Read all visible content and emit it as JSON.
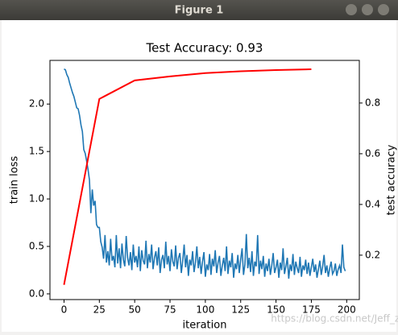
{
  "window": {
    "title": "Figure 1"
  },
  "watermark": "https://blog.csdn.net/Jeff_zjf",
  "chart_data": {
    "type": "line",
    "title": "Test Accuracy: 0.93",
    "xlabel": "iteration",
    "ylabel": "train loss",
    "y2label": "test accuracy",
    "xlim": [
      -9.95,
      208.95
    ],
    "xticks": [
      0,
      25,
      50,
      75,
      100,
      125,
      150,
      175,
      200
    ],
    "ylim": [
      -0.06,
      2.46
    ],
    "yticks": [
      {
        "value": 0,
        "label": "0.0"
      },
      {
        "value": 0.5,
        "label": "0.5"
      },
      {
        "value": 1,
        "label": "1.0"
      },
      {
        "value": 1.5,
        "label": "1.5"
      },
      {
        "value": 2,
        "label": "2.0"
      }
    ],
    "y2lim": [
      0.025,
      0.968
    ],
    "y2ticks": [
      0.2,
      0.4,
      0.6,
      0.8
    ],
    "series": [
      {
        "color": "#1f77b4",
        "x": [
          0,
          1,
          2,
          3,
          4,
          5,
          6,
          7,
          8,
          9,
          10,
          11,
          12,
          13,
          14,
          15,
          16,
          17,
          18,
          19,
          20,
          21,
          22,
          23,
          24,
          25,
          26,
          27,
          28,
          29,
          30,
          31,
          32,
          33,
          34,
          35,
          36,
          37,
          38,
          39,
          40,
          41,
          42,
          43,
          44,
          45,
          46,
          47,
          48,
          49,
          50,
          51,
          52,
          53,
          54,
          55,
          56,
          57,
          58,
          59,
          60,
          61,
          62,
          63,
          64,
          65,
          66,
          67,
          68,
          69,
          70,
          71,
          72,
          73,
          74,
          75,
          76,
          77,
          78,
          79,
          80,
          81,
          82,
          83,
          84,
          85,
          86,
          87,
          88,
          89,
          90,
          91,
          92,
          93,
          94,
          95,
          96,
          97,
          98,
          99,
          100,
          101,
          102,
          103,
          104,
          105,
          106,
          107,
          108,
          109,
          110,
          111,
          112,
          113,
          114,
          115,
          116,
          117,
          118,
          119,
          120,
          121,
          122,
          123,
          124,
          125,
          126,
          127,
          128,
          129,
          130,
          131,
          132,
          133,
          134,
          135,
          136,
          137,
          138,
          139,
          140,
          141,
          142,
          143,
          144,
          145,
          146,
          147,
          148,
          149,
          150,
          151,
          152,
          153,
          154,
          155,
          156,
          157,
          158,
          159,
          160,
          161,
          162,
          163,
          164,
          165,
          166,
          167,
          168,
          169,
          170,
          171,
          172,
          173,
          174,
          175,
          176,
          177,
          178,
          179,
          180,
          181,
          182,
          183,
          184,
          185,
          186,
          187,
          188,
          189,
          190,
          191,
          192,
          193,
          194,
          195,
          196,
          197,
          198,
          199
        ],
        "values": [
          2.37,
          2.36,
          2.31,
          2.28,
          2.22,
          2.17,
          2.12,
          2.08,
          2.02,
          1.96,
          1.95,
          1.88,
          1.78,
          1.71,
          1.52,
          1.48,
          1.4,
          1.31,
          1.2,
          0.85,
          1.1,
          0.93,
          0.98,
          0.73,
          0.7,
          0.7,
          0.55,
          0.49,
          0.37,
          0.62,
          0.33,
          0.45,
          0.3,
          0.58,
          0.35,
          0.4,
          0.28,
          0.62,
          0.32,
          0.48,
          0.27,
          0.53,
          0.36,
          0.29,
          0.61,
          0.38,
          0.3,
          0.44,
          0.25,
          0.52,
          0.33,
          0.4,
          0.28,
          0.5,
          0.24,
          0.46,
          0.35,
          0.31,
          0.56,
          0.27,
          0.42,
          0.33,
          0.52,
          0.26,
          0.38,
          0.45,
          0.3,
          0.49,
          0.22,
          0.36,
          0.41,
          0.27,
          0.55,
          0.31,
          0.4,
          0.24,
          0.47,
          0.34,
          0.29,
          0.51,
          0.26,
          0.38,
          0.43,
          0.22,
          0.35,
          0.52,
          0.28,
          0.41,
          0.19,
          0.36,
          0.3,
          0.45,
          0.23,
          0.33,
          0.5,
          0.27,
          0.39,
          0.21,
          0.34,
          0.44,
          0.18,
          0.31,
          0.25,
          0.42,
          0.2,
          0.37,
          0.29,
          0.46,
          0.22,
          0.33,
          0.4,
          0.19,
          0.3,
          0.38,
          0.24,
          0.5,
          0.21,
          0.35,
          0.28,
          0.43,
          0.17,
          0.32,
          0.26,
          0.41,
          0.22,
          0.36,
          0.48,
          0.2,
          0.31,
          0.63,
          0.27,
          0.38,
          0.23,
          0.45,
          0.19,
          0.34,
          0.29,
          0.62,
          0.21,
          0.35,
          0.26,
          0.4,
          0.18,
          0.32,
          0.24,
          0.37,
          0.2,
          0.3,
          0.43,
          0.22,
          0.28,
          0.36,
          0.17,
          0.33,
          0.25,
          0.48,
          0.21,
          0.29,
          0.38,
          0.16,
          0.31,
          0.24,
          0.42,
          0.2,
          0.34,
          0.27,
          0.22,
          0.39,
          0.18,
          0.3,
          0.25,
          0.36,
          0.21,
          0.33,
          0.19,
          0.28,
          0.37,
          0.23,
          0.31,
          0.17,
          0.26,
          0.35,
          0.2,
          0.29,
          0.41,
          0.22,
          0.3,
          0.18,
          0.27,
          0.34,
          0.21,
          0.24,
          0.32,
          0.19,
          0.26,
          0.3,
          0.22,
          0.52,
          0.28,
          0.24
        ]
      },
      {
        "color": "#ff0000",
        "axis": "y2",
        "x": [
          0,
          25,
          50,
          75,
          100,
          125,
          150,
          175
        ],
        "values": [
          0.083,
          0.816,
          0.889,
          0.905,
          0.918,
          0.925,
          0.93,
          0.933
        ]
      }
    ]
  }
}
